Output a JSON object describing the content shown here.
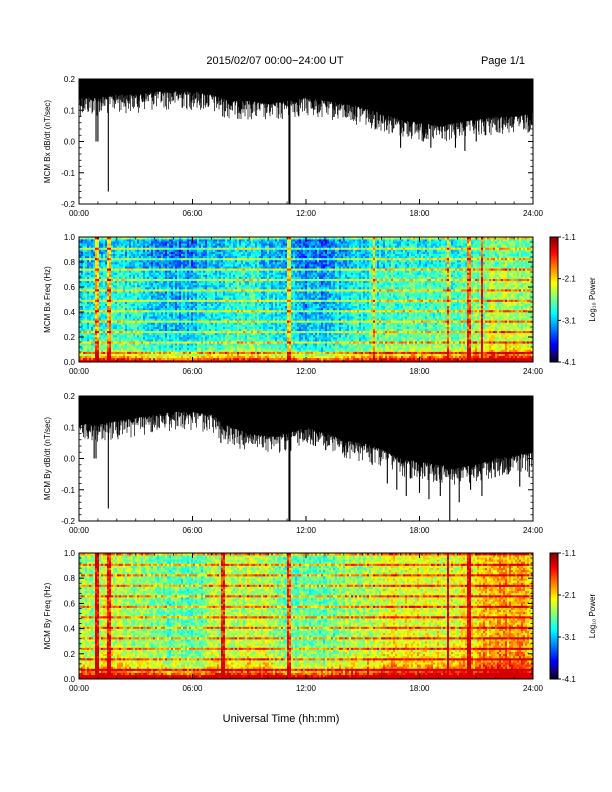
{
  "header": {
    "title": "2015/02/07  00:00−24:00 UT",
    "page": "Page 1/1"
  },
  "xlabel": "Universal Time (hh:mm)",
  "colorbar": {
    "label": "Log₁₀ Power",
    "ticks": [
      "-1.1",
      "-2.1",
      "-3.1",
      "-4.1"
    ],
    "range": [
      -4.1,
      -1.1
    ]
  },
  "chart_data": [
    {
      "type": "line",
      "name": "bx-timeseries",
      "ylabel": "MCM Bx dB/dt (nT/sec)",
      "xlim": [
        0,
        24
      ],
      "ylim": [
        -0.2,
        0.2
      ],
      "xticks": [
        "00:00",
        "06:00",
        "12:00",
        "18:00",
        "24:00"
      ],
      "yticks": [
        "0.2",
        "0.1",
        "0.0",
        "-0.1",
        "-0.2"
      ],
      "envelope": {
        "hours": [
          0,
          1,
          2,
          3,
          4,
          5,
          6,
          7,
          8,
          9,
          10,
          11,
          12,
          13,
          14,
          15,
          16,
          17,
          18,
          19,
          20,
          21,
          22,
          23,
          24
        ],
        "lower": [
          0.14,
          0.14,
          0.15,
          0.15,
          0.16,
          0.16,
          0.16,
          0.15,
          0.13,
          0.13,
          0.12,
          0.13,
          0.14,
          0.13,
          0.12,
          0.11,
          0.09,
          0.07,
          0.06,
          0.05,
          0.06,
          0.07,
          0.08,
          0.08,
          0.09
        ],
        "upper": [
          0.2,
          0.2,
          0.2,
          0.2,
          0.2,
          0.2,
          0.2,
          0.2,
          0.2,
          0.2,
          0.2,
          0.2,
          0.2,
          0.2,
          0.2,
          0.2,
          0.2,
          0.2,
          0.2,
          0.2,
          0.2,
          0.2,
          0.2,
          0.2,
          0.2
        ]
      },
      "spikes": [
        [
          0.9,
          0.0
        ],
        [
          1.0,
          0.0
        ],
        [
          1.55,
          -0.16
        ],
        [
          7.6,
          0.08
        ],
        [
          11.1,
          -0.2
        ],
        [
          11.15,
          -0.2
        ],
        [
          12.6,
          0.09
        ],
        [
          13.5,
          0.1
        ],
        [
          15.4,
          0.06
        ],
        [
          16.2,
          0.07
        ],
        [
          17.0,
          -0.02
        ],
        [
          17.6,
          0.02
        ],
        [
          18.2,
          0.0
        ],
        [
          18.6,
          -0.02
        ],
        [
          19.2,
          0.01
        ],
        [
          19.9,
          -0.02
        ],
        [
          20.4,
          -0.03
        ],
        [
          21.0,
          0.0
        ],
        [
          21.5,
          0.02
        ],
        [
          22.1,
          0.03
        ],
        [
          22.8,
          0.05
        ],
        [
          23.5,
          0.06
        ]
      ]
    },
    {
      "type": "heatmap",
      "name": "bx-spectrogram",
      "ylabel": "MCM Bx Freq (Hz)",
      "xlim": [
        0,
        24
      ],
      "ylim": [
        0.0,
        1.0
      ],
      "xticks": [
        "00:00",
        "06:00",
        "12:00",
        "18:00",
        "24:00"
      ],
      "yticks": [
        "1.0",
        "0.8",
        "0.6",
        "0.4",
        "0.2",
        "0.0"
      ],
      "harmonics_hz": [
        0.082,
        0.164,
        0.246,
        0.328,
        0.41,
        0.492,
        0.574,
        0.656,
        0.738,
        0.82,
        0.902,
        0.984
      ],
      "vertical_lines_hr": [
        0.9,
        1.0,
        1.6,
        11.1,
        15.6,
        19.5,
        20.6,
        21.3
      ]
    },
    {
      "type": "line",
      "name": "by-timeseries",
      "ylabel": "MCM By dB/dt (nT/sec)",
      "xlim": [
        0,
        24
      ],
      "ylim": [
        -0.2,
        0.2
      ],
      "xticks": [
        "00:00",
        "06:00",
        "12:00",
        "18:00",
        "24:00"
      ],
      "yticks": [
        "0.2",
        "0.1",
        "0.0",
        "-0.1",
        "-0.2"
      ],
      "envelope": {
        "hours": [
          0,
          1,
          2,
          3,
          4,
          5,
          6,
          7,
          8,
          9,
          10,
          11,
          12,
          13,
          14,
          15,
          16,
          17,
          18,
          19,
          20,
          21,
          22,
          23,
          24
        ],
        "lower": [
          0.11,
          0.11,
          0.12,
          0.13,
          0.14,
          0.15,
          0.15,
          0.14,
          0.1,
          0.08,
          0.07,
          0.08,
          0.1,
          0.08,
          0.06,
          0.05,
          0.03,
          0.0,
          -0.01,
          -0.02,
          -0.03,
          -0.02,
          0.0,
          0.01,
          0.02
        ],
        "upper": [
          0.2,
          0.2,
          0.2,
          0.2,
          0.2,
          0.2,
          0.2,
          0.2,
          0.2,
          0.2,
          0.2,
          0.2,
          0.2,
          0.2,
          0.2,
          0.2,
          0.2,
          0.2,
          0.2,
          0.2,
          0.2,
          0.2,
          0.2,
          0.2,
          0.2
        ]
      },
      "spikes": [
        [
          0.8,
          0.0
        ],
        [
          0.9,
          0.0
        ],
        [
          1.55,
          -0.16
        ],
        [
          7.5,
          0.05
        ],
        [
          11.1,
          -0.2
        ],
        [
          11.15,
          -0.2
        ],
        [
          12.5,
          0.04
        ],
        [
          14.2,
          0.02
        ],
        [
          15.5,
          -0.02
        ],
        [
          16.3,
          -0.08
        ],
        [
          16.8,
          -0.1
        ],
        [
          17.3,
          -0.12
        ],
        [
          18.0,
          -0.11
        ],
        [
          18.5,
          -0.13
        ],
        [
          19.1,
          -0.12
        ],
        [
          19.6,
          -0.2
        ],
        [
          20.1,
          -0.14
        ],
        [
          20.7,
          -0.1
        ],
        [
          21.3,
          -0.12
        ],
        [
          22.0,
          -0.06
        ],
        [
          22.7,
          -0.05
        ],
        [
          23.3,
          -0.09
        ],
        [
          23.8,
          -0.06
        ]
      ]
    },
    {
      "type": "heatmap",
      "name": "by-spectrogram",
      "ylabel": "MCM By Freq (Hz)",
      "xlim": [
        0,
        24
      ],
      "ylim": [
        0.0,
        1.0
      ],
      "xticks": [
        "00:00",
        "06:00",
        "12:00",
        "18:00",
        "24:00"
      ],
      "yticks": [
        "1.0",
        "0.8",
        "0.6",
        "0.4",
        "0.2",
        "0.0"
      ],
      "harmonics_hz": [
        0.082,
        0.164,
        0.246,
        0.328,
        0.41,
        0.492,
        0.574,
        0.656,
        0.738,
        0.82,
        0.902,
        0.984
      ],
      "vertical_lines_hr": [
        0.9,
        1.0,
        1.6,
        7.6,
        11.1,
        19.5,
        20.6
      ]
    }
  ]
}
